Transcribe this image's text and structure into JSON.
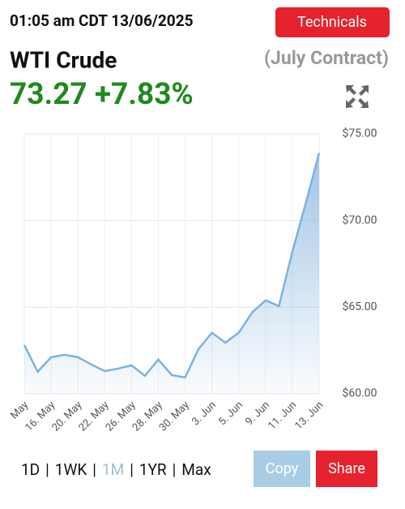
{
  "header": {
    "timestamp": "01:05 am CDT 13/06/2025",
    "technicals": "Technicals"
  },
  "instrument": {
    "name": "WTI Crude",
    "contract": "(July Contract)",
    "price_change": "73.27 +7.83%"
  },
  "chart_data": {
    "type": "area",
    "color": "#7fb2de",
    "categories": [
      "May",
      null,
      "16. May",
      null,
      "20. May",
      null,
      "22. May",
      null,
      "26. May",
      null,
      "28. May",
      null,
      "30. May",
      null,
      "3. Jun",
      null,
      "5. Jun",
      null,
      "9. Jun",
      null,
      "11. Jun",
      null,
      "13. Jun"
    ],
    "values": [
      62.81,
      61.27,
      62.11,
      62.25,
      62.11,
      61.69,
      61.31,
      61.45,
      61.64,
      61.03,
      61.97,
      61.08,
      60.94,
      62.58,
      63.52,
      62.95,
      63.52,
      64.69,
      65.39,
      65.06,
      68.2,
      71.0,
      73.9
    ],
    "ylim": [
      60,
      75
    ],
    "yticks": [
      {
        "value": 60,
        "label": "$60.00"
      },
      {
        "value": 65,
        "label": "$65.00"
      },
      {
        "value": 70,
        "label": "$70.00"
      },
      {
        "value": 75,
        "label": "$75.00"
      }
    ],
    "grid": true
  },
  "ranges": {
    "items": [
      "1D",
      "1WK",
      "1M",
      "1YR",
      "Max"
    ],
    "separator": "|",
    "active": "1M"
  },
  "buttons": {
    "copy": "Copy",
    "share": "Share"
  }
}
